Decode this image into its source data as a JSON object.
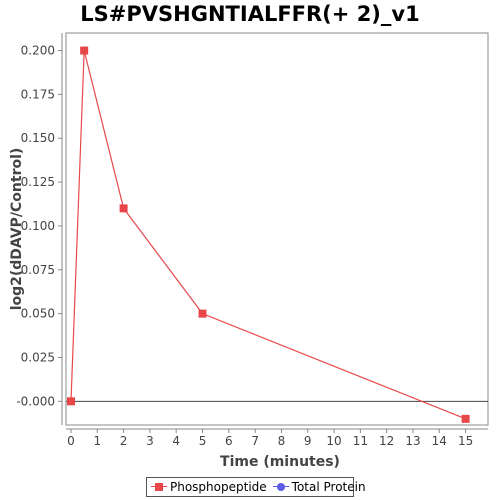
{
  "chart_data": {
    "type": "line",
    "title": "LS#PVSHGNTIALFFR(+ 2)_v1",
    "xlabel": "Time (minutes)",
    "ylabel": "log2(dDAVP/Control)",
    "xlim": [
      0,
      15.7
    ],
    "ylim": [
      -0.0135,
      0.21
    ],
    "xticks": [
      "0",
      "1",
      "2",
      "3",
      "4",
      "5",
      "6",
      "7",
      "8",
      "9",
      "10",
      "11",
      "12",
      "13",
      "14",
      "15"
    ],
    "yticks": [
      "-0.000",
      "0.025",
      "0.050",
      "0.075",
      "0.100",
      "0.125",
      "0.150",
      "0.175",
      "0.200"
    ],
    "grid": false,
    "legend_position": "bottom",
    "series": [
      {
        "name": "Phosphopeptide",
        "color": "#e8474a",
        "marker": "square",
        "x": [
          0,
          0.5,
          2,
          5,
          15
        ],
        "y": [
          0.0,
          0.2,
          0.11,
          0.05,
          -0.01
        ]
      },
      {
        "name": "Total Protein",
        "color": "#5c5ce8",
        "marker": "circle",
        "x": [],
        "y": []
      }
    ]
  }
}
